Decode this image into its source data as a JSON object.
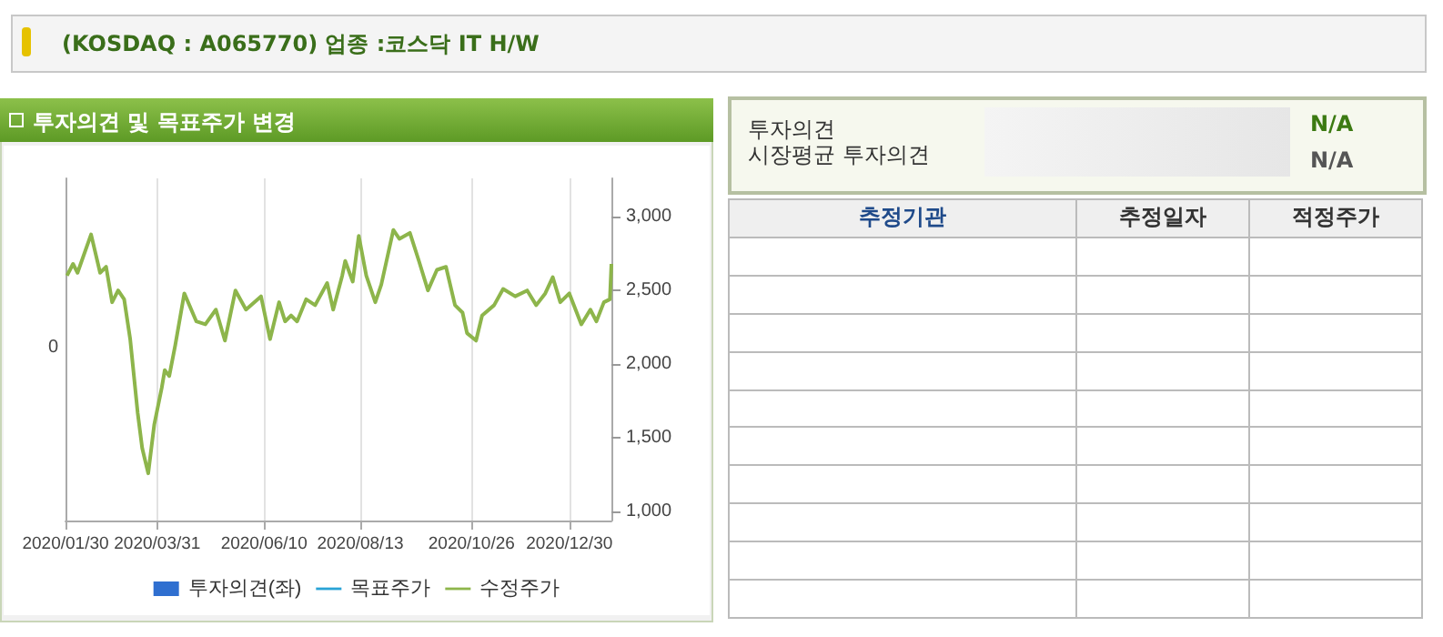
{
  "chart_data": [
    {
      "type": "other",
      "title": "(KOSDAQ : A065770) 업종 :코스닥 IT H/W"
    },
    {
      "type": "line",
      "title": "투자의견 및 목표주가 변경",
      "xlim": [
        "2020-01-30",
        "2021-01-27"
      ],
      "xticks": [
        {
          "value": "2020-01-30",
          "label": "2020/01/30"
        },
        {
          "value": "2020-03-31",
          "label": "2020/03/31"
        },
        {
          "value": "2020-06-10",
          "label": "2020/06/10"
        },
        {
          "value": "2020-08-13",
          "label": "2020/08/13"
        },
        {
          "value": "2020-10-26",
          "label": "2020/10/26"
        },
        {
          "value": "2020-12-30",
          "label": "2020/12/30"
        }
      ],
      "annotations": [
        "0"
      ],
      "y2lim": [
        940,
        3260
      ],
      "y2ticks": [
        {
          "value": 1000,
          "label": "1,000"
        },
        {
          "value": 1500,
          "label": "1,500"
        },
        {
          "value": 2000,
          "label": "2,000"
        },
        {
          "value": 2500,
          "label": "2,500"
        },
        {
          "value": 3000,
          "label": "3,000"
        }
      ],
      "grid": true,
      "legend": "bottom",
      "marker": "none",
      "line_style": "solid",
      "series": [
        {
          "name": "투자의견(좌)",
          "type": "bar",
          "color": "#2f6fd0"
        },
        {
          "name": "목표주가",
          "type": "line",
          "color": "#29a3d6",
          "axis": "y2"
        },
        {
          "name": "수정주가",
          "type": "line",
          "color": "#8db54b",
          "axis": "y2",
          "x": [
            "2020-01-31",
            "2020-02-04",
            "2020-02-07",
            "2020-02-16",
            "2020-02-22",
            "2020-02-26",
            "2020-03-01",
            "2020-03-05",
            "2020-03-09",
            "2020-03-13",
            "2020-03-18",
            "2020-03-21",
            "2020-03-25",
            "2020-03-29",
            "2020-04-03",
            "2020-04-05",
            "2020-04-08",
            "2020-04-12",
            "2020-04-18",
            "2020-04-26",
            "2020-05-02",
            "2020-05-09",
            "2020-05-15",
            "2020-05-22",
            "2020-05-29",
            "2020-06-08",
            "2020-06-14",
            "2020-06-20",
            "2020-06-24",
            "2020-06-28",
            "2020-07-02",
            "2020-07-08",
            "2020-07-14",
            "2020-07-22",
            "2020-07-26",
            "2020-08-01",
            "2020-08-03",
            "2020-08-08",
            "2020-08-12",
            "2020-08-17",
            "2020-08-23",
            "2020-08-27",
            "2020-09-04",
            "2020-09-08",
            "2020-09-15",
            "2020-09-21",
            "2020-09-27",
            "2020-10-03",
            "2020-10-09",
            "2020-10-15",
            "2020-10-20",
            "2020-10-23",
            "2020-10-29",
            "2020-11-02",
            "2020-11-10",
            "2020-11-16",
            "2020-11-24",
            "2020-12-02",
            "2020-12-08",
            "2020-12-14",
            "2020-12-19",
            "2020-12-24",
            "2020-12-30",
            "2021-01-07",
            "2021-01-13",
            "2021-01-17",
            "2021-01-22",
            "2021-01-26",
            "2021-01-27"
          ],
          "values": [
            2600,
            2680,
            2620,
            2880,
            2620,
            2660,
            2420,
            2500,
            2440,
            2170,
            1670,
            1430,
            1260,
            1590,
            1840,
            1960,
            1920,
            2130,
            2480,
            2290,
            2270,
            2370,
            2160,
            2500,
            2370,
            2460,
            2170,
            2420,
            2290,
            2330,
            2290,
            2440,
            2400,
            2550,
            2370,
            2600,
            2700,
            2560,
            2870,
            2600,
            2420,
            2540,
            2910,
            2850,
            2890,
            2700,
            2500,
            2640,
            2660,
            2400,
            2350,
            2210,
            2160,
            2330,
            2400,
            2510,
            2460,
            2500,
            2400,
            2480,
            2590,
            2420,
            2480,
            2270,
            2370,
            2290,
            2420,
            2440,
            2680
          ]
        }
      ]
    },
    {
      "type": "other",
      "annotations": [
        "투자의견",
        "시장평균 투자의견",
        "N/A",
        "N/A",
        "추정기관",
        "추정일자",
        "적정주가"
      ]
    }
  ]
}
